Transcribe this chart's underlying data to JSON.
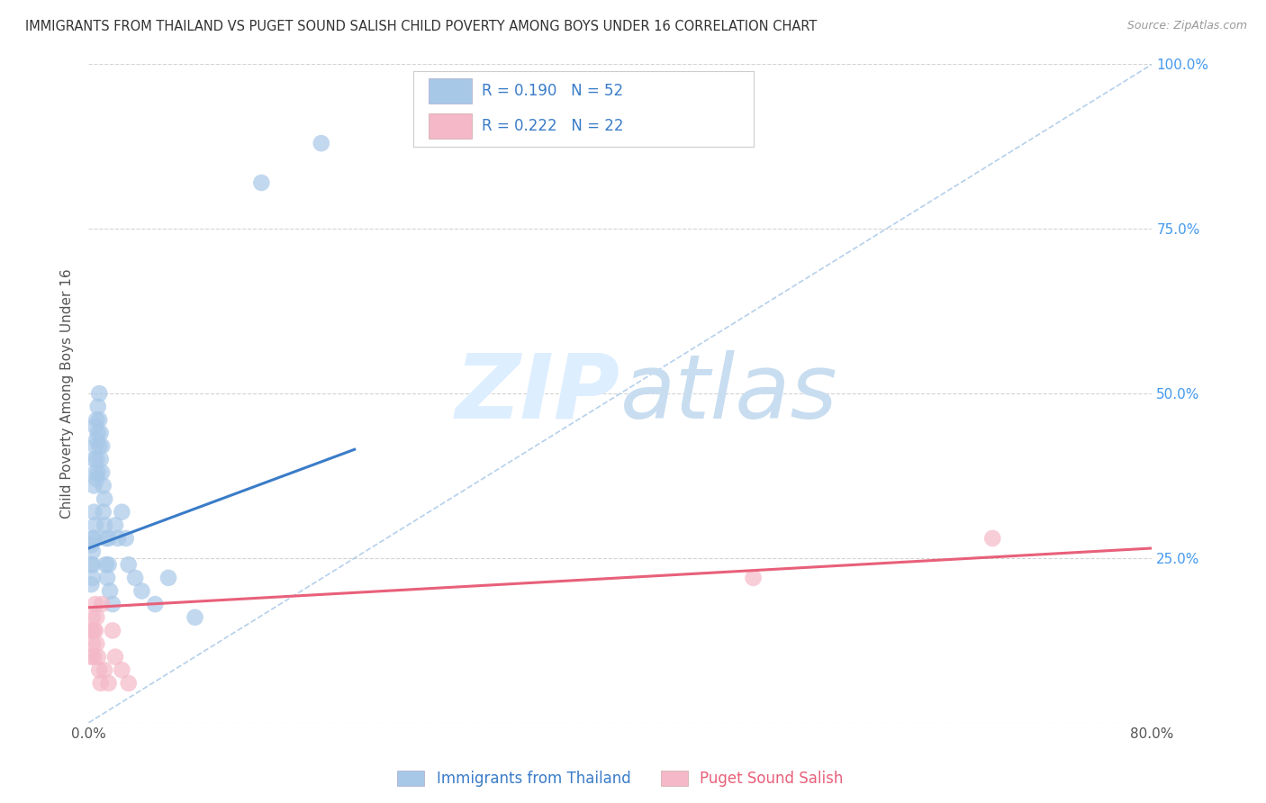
{
  "title": "IMMIGRANTS FROM THAILAND VS PUGET SOUND SALISH CHILD POVERTY AMONG BOYS UNDER 16 CORRELATION CHART",
  "source": "Source: ZipAtlas.com",
  "ylabel": "Child Poverty Among Boys Under 16",
  "xlim": [
    0.0,
    0.8
  ],
  "ylim": [
    0.0,
    1.0
  ],
  "blue_R": "0.190",
  "blue_N": "52",
  "pink_R": "0.222",
  "pink_N": "22",
  "legend_label1": "Immigrants from Thailand",
  "legend_label2": "Puget Sound Salish",
  "watermark_zip": "ZIP",
  "watermark_atlas": "atlas",
  "blue_scatter_x": [
    0.002,
    0.002,
    0.002,
    0.003,
    0.003,
    0.003,
    0.003,
    0.004,
    0.004,
    0.004,
    0.004,
    0.005,
    0.005,
    0.005,
    0.005,
    0.006,
    0.006,
    0.006,
    0.006,
    0.007,
    0.007,
    0.007,
    0.008,
    0.008,
    0.008,
    0.009,
    0.009,
    0.01,
    0.01,
    0.011,
    0.011,
    0.012,
    0.012,
    0.013,
    0.013,
    0.014,
    0.015,
    0.015,
    0.016,
    0.018,
    0.02,
    0.022,
    0.025,
    0.028,
    0.03,
    0.035,
    0.04,
    0.05,
    0.06,
    0.08,
    0.13,
    0.175
  ],
  "blue_scatter_y": [
    0.27,
    0.24,
    0.21,
    0.28,
    0.26,
    0.24,
    0.22,
    0.4,
    0.36,
    0.32,
    0.28,
    0.45,
    0.42,
    0.38,
    0.3,
    0.46,
    0.43,
    0.4,
    0.37,
    0.48,
    0.44,
    0.38,
    0.5,
    0.46,
    0.42,
    0.44,
    0.4,
    0.42,
    0.38,
    0.36,
    0.32,
    0.34,
    0.3,
    0.28,
    0.24,
    0.22,
    0.28,
    0.24,
    0.2,
    0.18,
    0.3,
    0.28,
    0.32,
    0.28,
    0.24,
    0.22,
    0.2,
    0.18,
    0.22,
    0.16,
    0.82,
    0.88
  ],
  "pink_scatter_x": [
    0.002,
    0.002,
    0.003,
    0.003,
    0.004,
    0.004,
    0.005,
    0.005,
    0.006,
    0.006,
    0.007,
    0.008,
    0.009,
    0.01,
    0.012,
    0.015,
    0.018,
    0.02,
    0.025,
    0.03,
    0.5,
    0.68
  ],
  "pink_scatter_y": [
    0.14,
    0.1,
    0.16,
    0.12,
    0.14,
    0.1,
    0.18,
    0.14,
    0.16,
    0.12,
    0.1,
    0.08,
    0.06,
    0.18,
    0.08,
    0.06,
    0.14,
    0.1,
    0.08,
    0.06,
    0.22,
    0.28
  ],
  "blue_line_x": [
    0.0,
    0.2
  ],
  "blue_line_y": [
    0.265,
    0.415
  ],
  "pink_line_x": [
    0.0,
    0.8
  ],
  "pink_line_y": [
    0.175,
    0.265
  ],
  "dashed_line_x": [
    0.0,
    0.8
  ],
  "dashed_line_y": [
    0.0,
    1.0
  ],
  "blue_scatter_color": "#a8c8e8",
  "blue_line_color": "#3a7cc8",
  "pink_scatter_color": "#f4b8c8",
  "pink_line_color": "#e8607a",
  "dashed_color": "#a8c8e8",
  "background_color": "#ffffff",
  "grid_color": "#d0d0d0",
  "title_color": "#333333",
  "right_label_color": "#4499ee",
  "watermark_color": "#ddeeff",
  "legend_text_color": "#3a7cc8"
}
